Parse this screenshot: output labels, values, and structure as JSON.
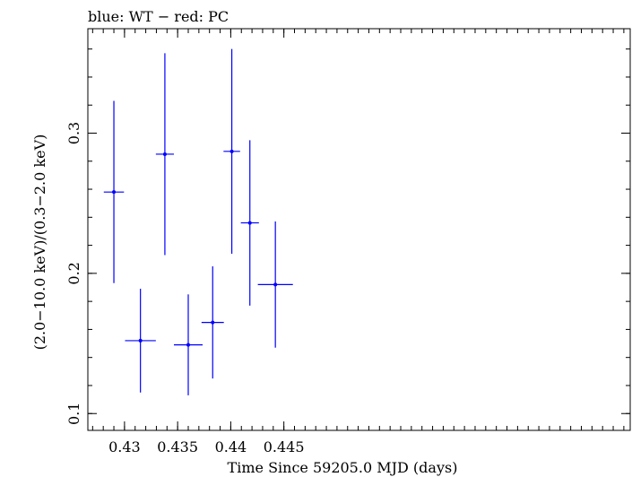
{
  "chart_data": {
    "type": "scatter",
    "title": "blue: WT − red: PC",
    "xlabel": "Time Since 59205.0 MJD (days)",
    "ylabel": "(2.0−10.0 keV)/(0.3−2.0 keV)",
    "xlim": [
      0.42655,
      0.4776
    ],
    "ylim": [
      0.088,
      0.3745
    ],
    "xticks": [
      0.43,
      0.435,
      0.44,
      0.445
    ],
    "xtick_labels": [
      "0.43",
      "0.435",
      "0.44",
      "0.445"
    ],
    "yticks": [
      0.1,
      0.2,
      0.3
    ],
    "ytick_labels": [
      "0.1",
      "0.2",
      "0.3"
    ],
    "grid": false,
    "legend": "none",
    "series": [
      {
        "color": "#0000ff",
        "points": [
          {
            "x": 0.429,
            "xerr": 0.00095,
            "y": 0.258,
            "yerr": 0.065
          },
          {
            "x": 0.4315,
            "xerr": 0.00145,
            "y": 0.152,
            "yerr": 0.037
          },
          {
            "x": 0.4338,
            "xerr": 0.00085,
            "y": 0.285,
            "yerr": 0.072
          },
          {
            "x": 0.436,
            "xerr": 0.00135,
            "y": 0.149,
            "yerr": 0.036
          },
          {
            "x": 0.4383,
            "xerr": 0.00105,
            "y": 0.165,
            "yerr": 0.04
          },
          {
            "x": 0.4401,
            "xerr": 0.00078,
            "y": 0.287,
            "yerr": 0.073
          },
          {
            "x": 0.4418,
            "xerr": 0.00085,
            "y": 0.236,
            "yerr": 0.059
          },
          {
            "x": 0.4442,
            "xerr": 0.00165,
            "y": 0.192,
            "yerr": 0.045
          }
        ]
      }
    ]
  }
}
